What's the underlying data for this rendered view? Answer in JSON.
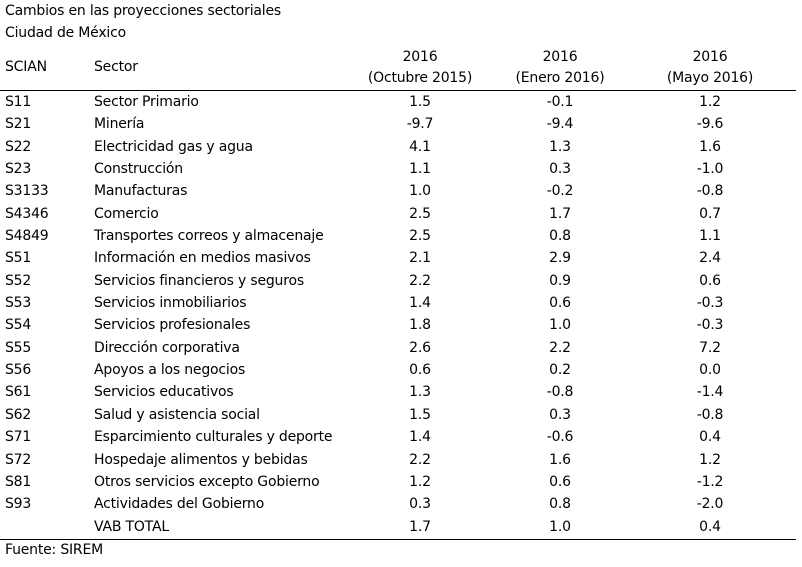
{
  "title": "Cambios en las proyecciones sectoriales",
  "subtitle": "Ciudad de México",
  "headers": {
    "scian": "SCIAN",
    "sector": "Sector",
    "col1_year": "2016",
    "col1_sub": "(Octubre 2015)",
    "col2_year": "2016",
    "col2_sub": "(Enero 2016)",
    "col3_year": "2016",
    "col3_sub": "(Mayo 2016)"
  },
  "rows": [
    {
      "code": "S11",
      "sector": "Sector Primario",
      "v1": "1.5",
      "v2": "-0.1",
      "v3": "1.2"
    },
    {
      "code": "S21",
      "sector": "Minería",
      "v1": "-9.7",
      "v2": "-9.4",
      "v3": "-9.6"
    },
    {
      "code": "S22",
      "sector": "Electricidad gas y agua",
      "v1": "4.1",
      "v2": "1.3",
      "v3": "1.6"
    },
    {
      "code": "S23",
      "sector": "Construcción",
      "v1": "1.1",
      "v2": "0.3",
      "v3": "-1.0"
    },
    {
      "code": "S3133",
      "sector": "Manufacturas",
      "v1": "1.0",
      "v2": "-0.2",
      "v3": "-0.8"
    },
    {
      "code": "S4346",
      "sector": "Comercio",
      "v1": "2.5",
      "v2": "1.7",
      "v3": "0.7"
    },
    {
      "code": "S4849",
      "sector": "Transportes correos y almacenaje",
      "v1": "2.5",
      "v2": "0.8",
      "v3": "1.1"
    },
    {
      "code": "S51",
      "sector": "Información en medios masivos",
      "v1": "2.1",
      "v2": "2.9",
      "v3": "2.4"
    },
    {
      "code": "S52",
      "sector": "Servicios financieros y seguros",
      "v1": "2.2",
      "v2": "0.9",
      "v3": "0.6"
    },
    {
      "code": "S53",
      "sector": "Servicios inmobiliarios",
      "v1": "1.4",
      "v2": "0.6",
      "v3": "-0.3"
    },
    {
      "code": "S54",
      "sector": "Servicios profesionales",
      "v1": "1.8",
      "v2": "1.0",
      "v3": "-0.3"
    },
    {
      "code": "S55",
      "sector": "Dirección corporativa",
      "v1": "2.6",
      "v2": "2.2",
      "v3": "7.2"
    },
    {
      "code": "S56",
      "sector": "Apoyos a los negocios",
      "v1": "0.6",
      "v2": "0.2",
      "v3": "0.0"
    },
    {
      "code": "S61",
      "sector": "Servicios educativos",
      "v1": "1.3",
      "v2": "-0.8",
      "v3": "-1.4"
    },
    {
      "code": "S62",
      "sector": "Salud y asistencia social",
      "v1": "1.5",
      "v2": "0.3",
      "v3": "-0.8"
    },
    {
      "code": "S71",
      "sector": "Esparcimiento culturales y deporte",
      "v1": "1.4",
      "v2": "-0.6",
      "v3": "0.4"
    },
    {
      "code": "S72",
      "sector": "Hospedaje alimentos y bebidas",
      "v1": "2.2",
      "v2": "1.6",
      "v3": "1.2"
    },
    {
      "code": "S81",
      "sector": "Otros servicios excepto Gobierno",
      "v1": "1.2",
      "v2": "0.6",
      "v3": "-1.2"
    },
    {
      "code": "S93",
      "sector": "Actividades del Gobierno",
      "v1": "0.3",
      "v2": "0.8",
      "v3": "-2.0"
    },
    {
      "code": "",
      "sector": "VAB TOTAL",
      "v1": "1.7",
      "v2": "1.0",
      "v3": "0.4"
    }
  ],
  "source": "Fuente: SIREM"
}
